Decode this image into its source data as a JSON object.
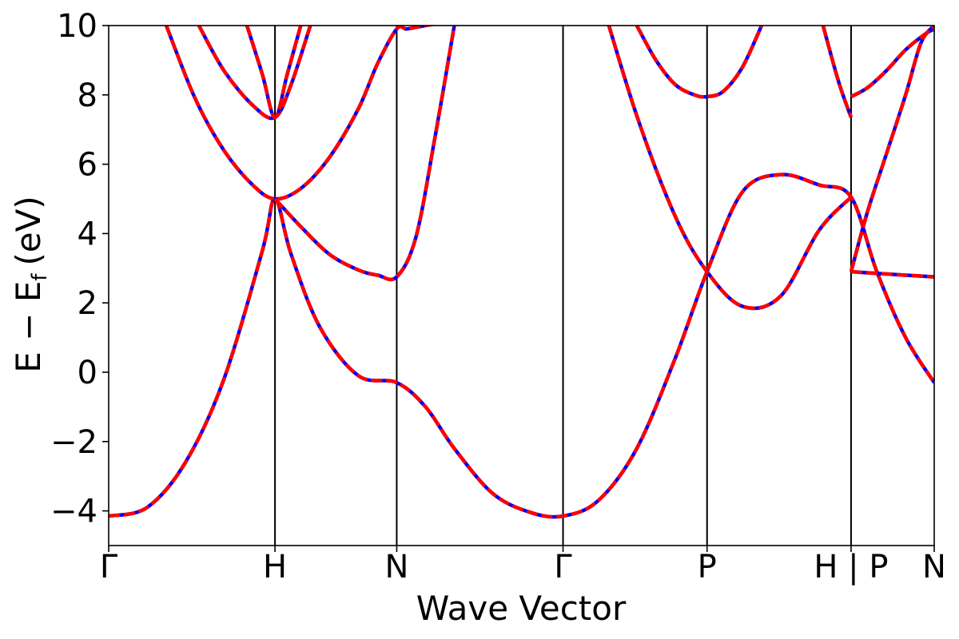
{
  "chart_data": {
    "type": "line",
    "title": "",
    "xlabel": "Wave Vector",
    "ylabel": "E − E",
    "ylabel_subscript": "f",
    "ylabel_unit": "(eV)",
    "ylim": [
      -5,
      10
    ],
    "y_ticks": [
      -4,
      -2,
      0,
      2,
      4,
      6,
      8,
      10
    ],
    "y_tick_labels": [
      "−4",
      "−2",
      "0",
      "2",
      "4",
      "6",
      "8",
      "10"
    ],
    "x_ticks": [
      0,
      0.866,
      1.5,
      2.366,
      3.116,
      3.866,
      4.299
    ],
    "x_tick_labels": [
      "Γ",
      "H",
      "N",
      "Γ",
      "P",
      "H | P",
      "N"
    ],
    "xlim": [
      0,
      4.299
    ],
    "grid": false,
    "legend": "none",
    "colors": {
      "solid": "#0000ff",
      "dashed": "#ff0000",
      "kline": "#000000"
    },
    "bands": [
      {
        "x": [
          0,
          0.2,
          0.4,
          0.6,
          0.8,
          0.866,
          0.95,
          1.1,
          1.3,
          1.5,
          1.65,
          1.8,
          2.0,
          2.2,
          2.366,
          2.55,
          2.75,
          2.95,
          3.116,
          3.3,
          3.5,
          3.7,
          3.866,
          4.0,
          4.15,
          4.299
        ],
        "y": [
          -4.15,
          -3.9,
          -2.6,
          -0.2,
          3.5,
          5.0,
          3.4,
          1.3,
          -0.1,
          -0.3,
          -1.0,
          -2.2,
          -3.5,
          -4.05,
          -4.15,
          -3.7,
          -2.2,
          0.4,
          2.9,
          5.2,
          5.7,
          5.4,
          5.05,
          2.9,
          1.0,
          -0.3
        ]
      },
      {
        "x": [
          0.3,
          0.45,
          0.6,
          0.75,
          0.866,
          1.0,
          1.15,
          1.3,
          1.4,
          1.5,
          1.55,
          1.6,
          1.65,
          1.7,
          1.75,
          1.8,
          1.85
        ],
        "y": [
          10.0,
          7.9,
          6.4,
          5.4,
          5.0,
          5.3,
          6.2,
          7.6,
          8.9,
          9.9,
          9.9,
          9.95,
          10.0,
          10.05,
          10.1,
          10.15,
          10.2
        ]
      },
      {
        "x": [
          0.866,
          1.0,
          1.15,
          1.3,
          1.4,
          1.5,
          1.6,
          1.7,
          1.8
        ],
        "y": [
          5.0,
          4.2,
          3.4,
          2.95,
          2.8,
          2.75,
          3.9,
          6.8,
          10.0
        ]
      },
      {
        "x": [
          0.47,
          0.6,
          0.75,
          0.866,
          0.95,
          1.05
        ],
        "y": [
          10.0,
          8.7,
          7.7,
          7.35,
          8.3,
          10.0
        ]
      },
      {
        "x": [
          0.72,
          0.8,
          0.866,
          0.93,
          1.0
        ],
        "y": [
          10.0,
          8.6,
          7.35,
          8.6,
          10.0
        ]
      },
      {
        "x": [
          2.366,
          2.55,
          2.75,
          2.95,
          3.116,
          3.3,
          3.5,
          3.7,
          3.866
        ],
        "y": [
          14.2,
          11.0,
          7.4,
          4.5,
          2.9,
          1.9,
          2.2,
          4.1,
          5.05
        ]
      },
      {
        "x": [
          2.75,
          2.85,
          2.95,
          3.05,
          3.116,
          3.2,
          3.3,
          3.4
        ],
        "y": [
          10.0,
          9.0,
          8.3,
          8.0,
          7.95,
          8.1,
          8.8,
          10.0
        ]
      },
      {
        "x": [
          3.72,
          3.8,
          3.866
        ],
        "y": [
          10.0,
          8.4,
          7.35
        ]
      },
      {
        "x": [
          3.866,
          3.95,
          4.05,
          4.15,
          4.25,
          4.299
        ],
        "y": [
          7.95,
          8.2,
          8.7,
          9.3,
          9.75,
          9.9
        ]
      },
      {
        "x": [
          3.866,
          3.95,
          4.05,
          4.15,
          4.23,
          4.299
        ],
        "y": [
          2.9,
          4.6,
          6.3,
          8.0,
          9.5,
          10.0
        ]
      },
      {
        "x": [
          3.866,
          4.0,
          4.15,
          4.299
        ],
        "y": [
          2.9,
          2.85,
          2.8,
          2.75
        ]
      }
    ]
  }
}
